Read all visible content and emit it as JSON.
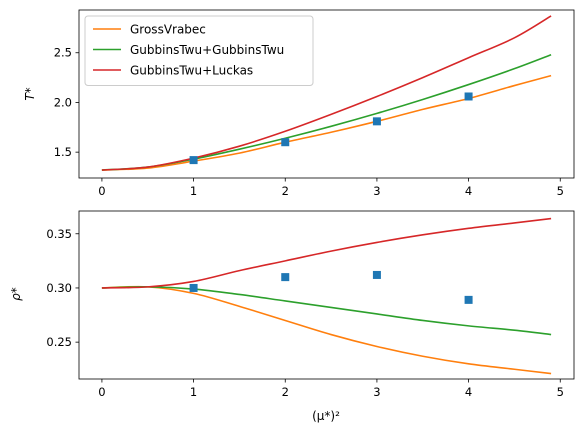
{
  "chart_data": [
    {
      "type": "line",
      "xlabel": "",
      "ylabel": "T*",
      "xlim": [
        -0.25,
        5.15
      ],
      "ylim": [
        1.24,
        2.93
      ],
      "xticks": [
        "0",
        "1",
        "2",
        "3",
        "4",
        "5"
      ],
      "yticks": [
        "1.5",
        "2.0",
        "2.5"
      ],
      "legend_position": "upper-left",
      "series": [
        {
          "name": "GrossVrabec",
          "color": "#ff7f0e",
          "kind": "line",
          "x": [
            0,
            0.5,
            1,
            1.5,
            2,
            2.5,
            3,
            3.5,
            4,
            4.5,
            4.9
          ],
          "y": [
            1.32,
            1.34,
            1.41,
            1.49,
            1.6,
            1.7,
            1.81,
            1.93,
            2.04,
            2.17,
            2.27
          ]
        },
        {
          "name": "GubbinsTwu+GubbinsTwu",
          "color": "#2ca02c",
          "kind": "line",
          "x": [
            0,
            0.5,
            1,
            1.5,
            2,
            2.5,
            3,
            3.5,
            4,
            4.5,
            4.9
          ],
          "y": [
            1.32,
            1.35,
            1.43,
            1.53,
            1.64,
            1.76,
            1.89,
            2.03,
            2.18,
            2.34,
            2.48
          ]
        },
        {
          "name": "GubbinsTwu+Luckas",
          "color": "#d62728",
          "kind": "line",
          "x": [
            0,
            0.5,
            1,
            1.5,
            2,
            2.5,
            3,
            3.5,
            4,
            4.5,
            4.9
          ],
          "y": [
            1.32,
            1.35,
            1.44,
            1.56,
            1.71,
            1.88,
            2.06,
            2.25,
            2.45,
            2.65,
            2.87
          ]
        },
        {
          "name": "",
          "color": "#1f77b4",
          "kind": "scatter",
          "x": [
            1,
            2,
            3,
            4
          ],
          "y": [
            1.42,
            1.6,
            1.81,
            2.06
          ]
        }
      ]
    },
    {
      "type": "line",
      "xlabel": "(μ*)²",
      "ylabel": "ρ*",
      "xlim": [
        -0.25,
        5.15
      ],
      "ylim": [
        0.216,
        0.371
      ],
      "xticks": [
        "0",
        "1",
        "2",
        "3",
        "4",
        "5"
      ],
      "yticks": [
        "0.25",
        "0.30",
        "0.35"
      ],
      "series": [
        {
          "name": "GrossVrabec",
          "color": "#ff7f0e",
          "kind": "line",
          "x": [
            0,
            0.5,
            1,
            1.5,
            2,
            2.5,
            3,
            3.5,
            4,
            4.5,
            4.9
          ],
          "y": [
            0.3,
            0.301,
            0.295,
            0.283,
            0.27,
            0.257,
            0.246,
            0.237,
            0.23,
            0.225,
            0.221
          ]
        },
        {
          "name": "GubbinsTwu+GubbinsTwu",
          "color": "#2ca02c",
          "kind": "line",
          "x": [
            0,
            0.5,
            1,
            1.5,
            2,
            2.5,
            3,
            3.5,
            4,
            4.5,
            4.9
          ],
          "y": [
            0.3,
            0.301,
            0.299,
            0.294,
            0.288,
            0.282,
            0.276,
            0.27,
            0.265,
            0.261,
            0.257
          ]
        },
        {
          "name": "GubbinsTwu+Luckas",
          "color": "#d62728",
          "kind": "line",
          "x": [
            0,
            0.5,
            1,
            1.5,
            2,
            2.5,
            3,
            3.5,
            4,
            4.5,
            4.9
          ],
          "y": [
            0.3,
            0.301,
            0.306,
            0.316,
            0.325,
            0.334,
            0.342,
            0.349,
            0.355,
            0.36,
            0.364
          ]
        },
        {
          "name": "",
          "color": "#1f77b4",
          "kind": "scatter",
          "x": [
            1,
            2,
            3,
            4
          ],
          "y": [
            0.3,
            0.31,
            0.312,
            0.289
          ]
        }
      ]
    }
  ]
}
